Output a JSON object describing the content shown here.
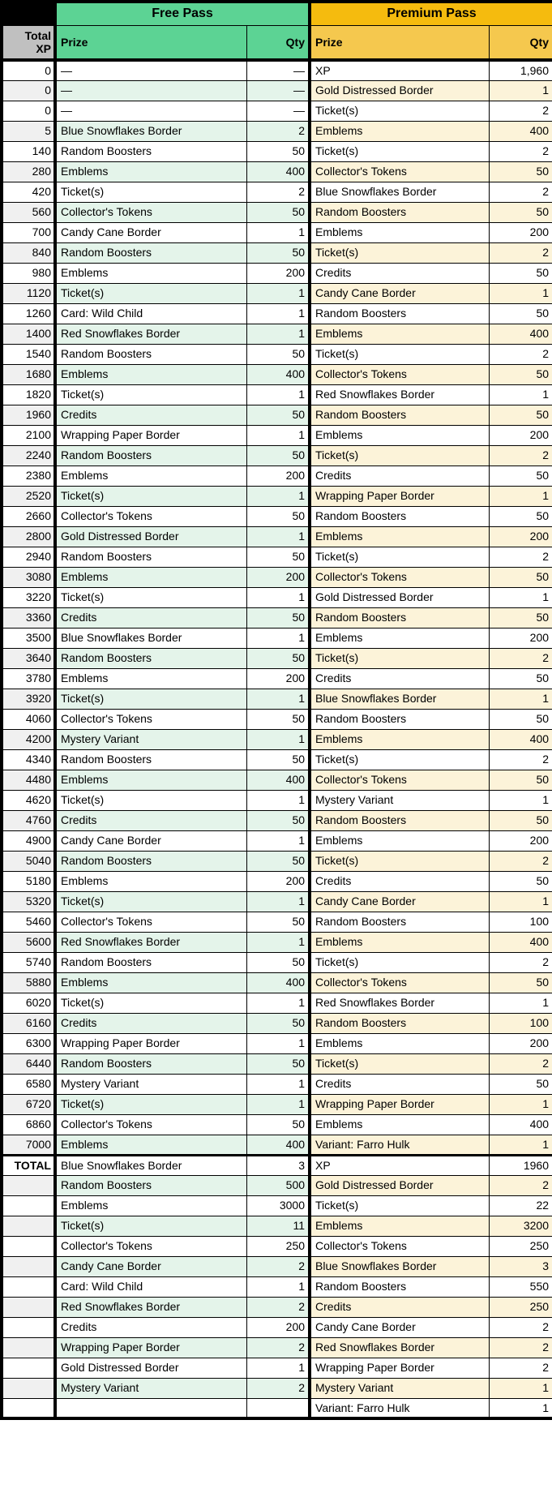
{
  "header": {
    "free_pass_label": "Free Pass",
    "premium_pass_label": "Premium Pass",
    "total_xp_label": "Total XP",
    "prize_label": "Prize",
    "qty_label": "Qty"
  },
  "total_label": "TOTAL",
  "colors": {
    "free_header": "#5CD394",
    "free_row_tint": "#E4F4EA",
    "premium_header": "#F5BB0E",
    "premium_subheader": "#F5C84E",
    "premium_row_tint": "#FCF3D9",
    "xp_header_gray": "#C0C0C0",
    "xp_row_tint": "#F0F0F0",
    "border_black": "#000000"
  },
  "rows": [
    [
      "0",
      "—",
      "—",
      "XP",
      "1,960"
    ],
    [
      "0",
      "—",
      "—",
      "Gold Distressed Border",
      "1"
    ],
    [
      "0",
      "—",
      "—",
      "Ticket(s)",
      "2"
    ],
    [
      "5",
      "Blue Snowflakes Border",
      "2",
      "Emblems",
      "400"
    ],
    [
      "140",
      "Random Boosters",
      "50",
      "Ticket(s)",
      "2"
    ],
    [
      "280",
      "Emblems",
      "400",
      "Collector's Tokens",
      "50"
    ],
    [
      "420",
      "Ticket(s)",
      "2",
      "Blue Snowflakes Border",
      "2"
    ],
    [
      "560",
      "Collector's Tokens",
      "50",
      "Random Boosters",
      "50"
    ],
    [
      "700",
      "Candy Cane Border",
      "1",
      "Emblems",
      "200"
    ],
    [
      "840",
      "Random Boosters",
      "50",
      "Ticket(s)",
      "2"
    ],
    [
      "980",
      "Emblems",
      "200",
      "Credits",
      "50"
    ],
    [
      "1120",
      "Ticket(s)",
      "1",
      "Candy Cane Border",
      "1"
    ],
    [
      "1260",
      "Card: Wild Child",
      "1",
      "Random Boosters",
      "50"
    ],
    [
      "1400",
      "Red Snowflakes Border",
      "1",
      "Emblems",
      "400"
    ],
    [
      "1540",
      "Random Boosters",
      "50",
      "Ticket(s)",
      "2"
    ],
    [
      "1680",
      "Emblems",
      "400",
      "Collector's Tokens",
      "50"
    ],
    [
      "1820",
      "Ticket(s)",
      "1",
      "Red Snowflakes Border",
      "1"
    ],
    [
      "1960",
      "Credits",
      "50",
      "Random Boosters",
      "50"
    ],
    [
      "2100",
      "Wrapping Paper Border",
      "1",
      "Emblems",
      "200"
    ],
    [
      "2240",
      "Random Boosters",
      "50",
      "Ticket(s)",
      "2"
    ],
    [
      "2380",
      "Emblems",
      "200",
      "Credits",
      "50"
    ],
    [
      "2520",
      "Ticket(s)",
      "1",
      "Wrapping Paper Border",
      "1"
    ],
    [
      "2660",
      "Collector's Tokens",
      "50",
      "Random Boosters",
      "50"
    ],
    [
      "2800",
      "Gold Distressed Border",
      "1",
      "Emblems",
      "200"
    ],
    [
      "2940",
      "Random Boosters",
      "50",
      "Ticket(s)",
      "2"
    ],
    [
      "3080",
      "Emblems",
      "200",
      "Collector's Tokens",
      "50"
    ],
    [
      "3220",
      "Ticket(s)",
      "1",
      "Gold Distressed Border",
      "1"
    ],
    [
      "3360",
      "Credits",
      "50",
      "Random Boosters",
      "50"
    ],
    [
      "3500",
      "Blue Snowflakes Border",
      "1",
      "Emblems",
      "200"
    ],
    [
      "3640",
      "Random Boosters",
      "50",
      "Ticket(s)",
      "2"
    ],
    [
      "3780",
      "Emblems",
      "200",
      "Credits",
      "50"
    ],
    [
      "3920",
      "Ticket(s)",
      "1",
      "Blue Snowflakes Border",
      "1"
    ],
    [
      "4060",
      "Collector's Tokens",
      "50",
      "Random Boosters",
      "50"
    ],
    [
      "4200",
      "Mystery Variant",
      "1",
      "Emblems",
      "400"
    ],
    [
      "4340",
      "Random Boosters",
      "50",
      "Ticket(s)",
      "2"
    ],
    [
      "4480",
      "Emblems",
      "400",
      "Collector's Tokens",
      "50"
    ],
    [
      "4620",
      "Ticket(s)",
      "1",
      "Mystery Variant",
      "1"
    ],
    [
      "4760",
      "Credits",
      "50",
      "Random Boosters",
      "50"
    ],
    [
      "4900",
      "Candy Cane Border",
      "1",
      "Emblems",
      "200"
    ],
    [
      "5040",
      "Random Boosters",
      "50",
      "Ticket(s)",
      "2"
    ],
    [
      "5180",
      "Emblems",
      "200",
      "Credits",
      "50"
    ],
    [
      "5320",
      "Ticket(s)",
      "1",
      "Candy Cane Border",
      "1"
    ],
    [
      "5460",
      "Collector's Tokens",
      "50",
      "Random Boosters",
      "100"
    ],
    [
      "5600",
      "Red Snowflakes Border",
      "1",
      "Emblems",
      "400"
    ],
    [
      "5740",
      "Random Boosters",
      "50",
      "Ticket(s)",
      "2"
    ],
    [
      "5880",
      "Emblems",
      "400",
      "Collector's Tokens",
      "50"
    ],
    [
      "6020",
      "Ticket(s)",
      "1",
      "Red Snowflakes Border",
      "1"
    ],
    [
      "6160",
      "Credits",
      "50",
      "Random Boosters",
      "100"
    ],
    [
      "6300",
      "Wrapping Paper Border",
      "1",
      "Emblems",
      "200"
    ],
    [
      "6440",
      "Random Boosters",
      "50",
      "Ticket(s)",
      "2"
    ],
    [
      "6580",
      "Mystery Variant",
      "1",
      "Credits",
      "50"
    ],
    [
      "6720",
      "Ticket(s)",
      "1",
      "Wrapping Paper Border",
      "1"
    ],
    [
      "6860",
      "Collector's Tokens",
      "50",
      "Emblems",
      "400"
    ],
    [
      "7000",
      "Emblems",
      "400",
      "Variant: Farro Hulk",
      "1"
    ]
  ],
  "total_rows": [
    [
      "TOTAL",
      "Blue Snowflakes Border",
      "3",
      "XP",
      "1960"
    ],
    [
      "",
      "Random Boosters",
      "500",
      "Gold Distressed Border",
      "2"
    ],
    [
      "",
      "Emblems",
      "3000",
      "Ticket(s)",
      "22"
    ],
    [
      "",
      "Ticket(s)",
      "11",
      "Emblems",
      "3200"
    ],
    [
      "",
      "Collector's Tokens",
      "250",
      "Collector's Tokens",
      "250"
    ],
    [
      "",
      "Candy Cane Border",
      "2",
      "Blue Snowflakes Border",
      "3"
    ],
    [
      "",
      "Card: Wild Child",
      "1",
      "Random Boosters",
      "550"
    ],
    [
      "",
      "Red Snowflakes Border",
      "2",
      "Credits",
      "250"
    ],
    [
      "",
      "Credits",
      "200",
      "Candy Cane Border",
      "2"
    ],
    [
      "",
      "Wrapping Paper Border",
      "2",
      "Red Snowflakes Border",
      "2"
    ],
    [
      "",
      "Gold Distressed Border",
      "1",
      "Wrapping Paper Border",
      "2"
    ],
    [
      "",
      "Mystery Variant",
      "2",
      "Mystery Variant",
      "1"
    ],
    [
      "",
      "",
      "",
      "Variant: Farro Hulk",
      "1"
    ]
  ]
}
